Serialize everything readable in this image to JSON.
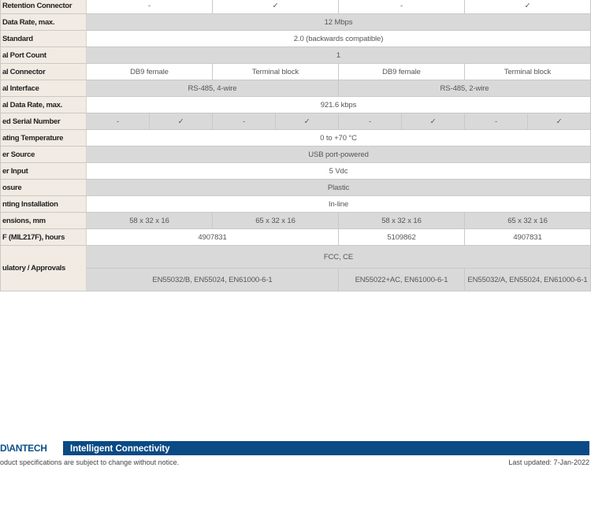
{
  "table": {
    "rows": [
      {
        "label": "Retention Connector",
        "cells": [
          {
            "t": "-",
            "span": 2
          },
          {
            "t": "✓",
            "span": 2
          },
          {
            "t": "-",
            "span": 2
          },
          {
            "t": "✓",
            "span": 2
          }
        ]
      },
      {
        "label": "Data Rate, max.",
        "cells": [
          {
            "t": "12 Mbps",
            "span": 8
          }
        ]
      },
      {
        "label": "Standard",
        "cells": [
          {
            "t": "2.0 (backwards compatible)",
            "span": 8
          }
        ]
      },
      {
        "label": "al Port Count",
        "cells": [
          {
            "t": "1",
            "span": 8
          }
        ]
      },
      {
        "label": "al Connector",
        "cells": [
          {
            "t": "DB9 female",
            "span": 2
          },
          {
            "t": "Terminal block",
            "span": 2
          },
          {
            "t": "DB9 female",
            "span": 2
          },
          {
            "t": "Terminal block",
            "span": 2
          }
        ]
      },
      {
        "label": "al Interface",
        "cells": [
          {
            "t": "RS-485, 4-wire",
            "span": 4
          },
          {
            "t": "RS-485, 2-wire",
            "span": 4
          }
        ]
      },
      {
        "label": "al Data Rate, max.",
        "cells": [
          {
            "t": "921.6 kbps",
            "span": 8
          }
        ]
      },
      {
        "label": "ed Serial Number",
        "cells": [
          {
            "t": "-",
            "span": 1
          },
          {
            "t": "✓",
            "span": 1
          },
          {
            "t": "-",
            "span": 1
          },
          {
            "t": "✓",
            "span": 1
          },
          {
            "t": "-",
            "span": 1
          },
          {
            "t": "✓",
            "span": 1
          },
          {
            "t": "-",
            "span": 1
          },
          {
            "t": "✓",
            "span": 1
          }
        ]
      },
      {
        "label": "ating Temperature",
        "cells": [
          {
            "t": "0 to +70 °C",
            "span": 8
          }
        ]
      },
      {
        "label": "er Source",
        "cells": [
          {
            "t": "USB port-powered",
            "span": 8
          }
        ]
      },
      {
        "label": "er Input",
        "cells": [
          {
            "t": "5 Vdc",
            "span": 8
          }
        ]
      },
      {
        "label": "osure",
        "cells": [
          {
            "t": "Plastic",
            "span": 8
          }
        ]
      },
      {
        "label": "nting Installation",
        "cells": [
          {
            "t": "In-line",
            "span": 8
          }
        ]
      },
      {
        "label": "ensions, mm",
        "cells": [
          {
            "t": "58 x 32 x 16",
            "span": 2
          },
          {
            "t": "65 x 32 x 16",
            "span": 2
          },
          {
            "t": "58 x 32 x 16",
            "span": 2
          },
          {
            "t": "65 x 32 x 16",
            "span": 2
          }
        ]
      },
      {
        "label": "F (MIL217F), hours",
        "cells": [
          {
            "t": "4907831",
            "span": 4
          },
          {
            "t": "5109862",
            "span": 2
          },
          {
            "t": "4907831",
            "span": 2
          }
        ]
      }
    ],
    "regulatory": {
      "label": "ulatory / Approvals",
      "top": "FCC, CE",
      "bottom": [
        {
          "t": "EN55032/B, EN55024, EN61000-6-1",
          "span": 4
        },
        {
          "t": "EN55022+AC, EN61000-6-1",
          "span": 2
        },
        {
          "t": "EN55032/A, EN55024, EN61000-6-1",
          "span": 2
        }
      ]
    }
  },
  "footer": {
    "logo": "D\\ANTECH",
    "tagline": "Intelligent Connectivity",
    "disclaimer": "oduct specifications are subject to change without notice.",
    "updated": "Last updated: 7-Jan-2022",
    "brand_color": "#0a4a85"
  }
}
